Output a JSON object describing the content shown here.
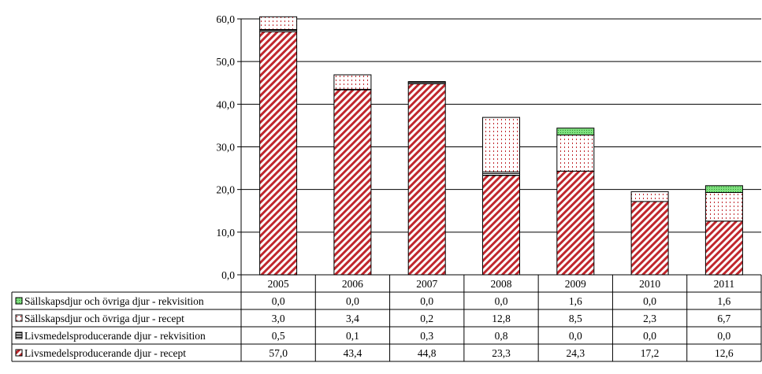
{
  "chart_data": {
    "type": "bar",
    "stacked": true,
    "categories": [
      "2005",
      "2006",
      "2007",
      "2008",
      "2009",
      "2010",
      "2011"
    ],
    "series": [
      {
        "name": "Livsmedelsproducerande djur - recept",
        "labels": [
          "57,0",
          "43,4",
          "44,8",
          "23,3",
          "24,3",
          "17,2",
          "12,6"
        ],
        "values": [
          57.0,
          43.4,
          44.8,
          23.3,
          24.3,
          17.2,
          12.6
        ],
        "color": "#c0272d",
        "pattern": "diagonal-stripes"
      },
      {
        "name": "Livsmedelsproducerande djur - rekvisition",
        "labels": [
          "0,5",
          "0,1",
          "0,3",
          "0,8",
          "0,0",
          "0,0",
          "0,0"
        ],
        "values": [
          0.5,
          0.1,
          0.3,
          0.8,
          0.0,
          0.0,
          0.0
        ],
        "color": "#000000",
        "pattern": "horizontal-lines"
      },
      {
        "name": "Sällskapsdjur och övriga djur - recept",
        "labels": [
          "3,0",
          "3,4",
          "0,2",
          "12,8",
          "8,5",
          "2,3",
          "6,7"
        ],
        "values": [
          3.0,
          3.4,
          0.2,
          12.8,
          8.5,
          2.3,
          6.7
        ],
        "color": "#c0272d",
        "pattern": "dots"
      },
      {
        "name": "Sällskapsdjur och övriga djur - rekvisition",
        "labels": [
          "0,0",
          "0,0",
          "0,0",
          "0,0",
          "1,6",
          "0,0",
          "1,6"
        ],
        "values": [
          0.0,
          0.0,
          0.0,
          0.0,
          1.6,
          0.0,
          1.6
        ],
        "color": "#4caf50",
        "pattern": "dots-green"
      }
    ],
    "ylim": [
      0,
      60
    ],
    "yticks": [
      "0,0",
      "10,0",
      "20,0",
      "30,0",
      "40,0",
      "50,0",
      "60,0"
    ],
    "grid": true,
    "legend": "data-table-left",
    "data_table": true
  }
}
